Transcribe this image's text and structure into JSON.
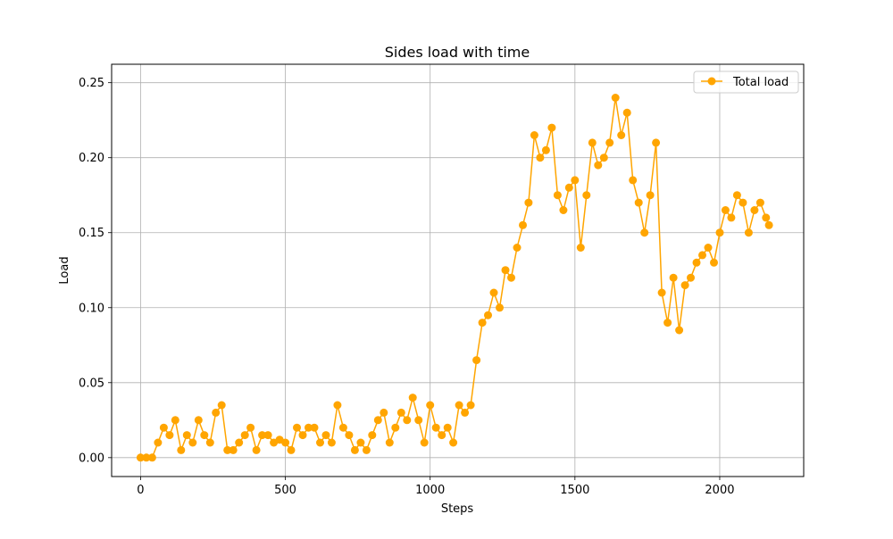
{
  "chart_data": {
    "type": "line",
    "title": "Sides load with time",
    "xlabel": "Steps",
    "ylabel": "Load",
    "xlim": [
      -100,
      2290
    ],
    "ylim": [
      -0.0126,
      0.2623
    ],
    "xticks": [
      0,
      500,
      1000,
      1500,
      2000
    ],
    "xtick_labels": [
      "0",
      "500",
      "1000",
      "1500",
      "2000"
    ],
    "yticks": [
      0.0,
      0.05,
      0.1,
      0.15,
      0.2,
      0.25
    ],
    "ytick_labels": [
      "0.00",
      "0.05",
      "0.10",
      "0.15",
      "0.20",
      "0.25"
    ],
    "grid": true,
    "legend": "top-right",
    "series": [
      {
        "name": "Total load",
        "color": "#ffa500",
        "marker": "circle",
        "x": [
          0,
          20,
          40,
          60,
          80,
          100,
          120,
          140,
          160,
          180,
          200,
          220,
          240,
          260,
          280,
          300,
          320,
          340,
          360,
          380,
          400,
          420,
          440,
          460,
          480,
          500,
          520,
          540,
          560,
          580,
          600,
          620,
          640,
          660,
          680,
          700,
          720,
          740,
          760,
          780,
          800,
          820,
          840,
          860,
          880,
          900,
          920,
          940,
          960,
          980,
          1000,
          1020,
          1040,
          1060,
          1080,
          1100,
          1120,
          1140,
          1160,
          1180,
          1200,
          1220,
          1240,
          1260,
          1280,
          1300,
          1320,
          1340,
          1360,
          1380,
          1400,
          1420,
          1440,
          1460,
          1480,
          1500,
          1520,
          1540,
          1560,
          1580,
          1600,
          1620,
          1640,
          1660,
          1680,
          1700,
          1720,
          1740,
          1760,
          1780,
          1800,
          1820,
          1840,
          1860,
          1880,
          1900,
          1920,
          1940,
          1960,
          1980,
          2000,
          2020,
          2040,
          2060,
          2080,
          2100,
          2120,
          2140,
          2160,
          2170
        ],
        "y": [
          0.0,
          0.0,
          0.0,
          0.01,
          0.02,
          0.015,
          0.025,
          0.005,
          0.015,
          0.01,
          0.025,
          0.015,
          0.01,
          0.03,
          0.035,
          0.005,
          0.005,
          0.01,
          0.015,
          0.02,
          0.005,
          0.015,
          0.015,
          0.01,
          0.012,
          0.01,
          0.005,
          0.02,
          0.015,
          0.02,
          0.02,
          0.01,
          0.015,
          0.01,
          0.035,
          0.02,
          0.015,
          0.005,
          0.01,
          0.005,
          0.015,
          0.025,
          0.03,
          0.01,
          0.02,
          0.03,
          0.025,
          0.04,
          0.025,
          0.01,
          0.035,
          0.02,
          0.015,
          0.02,
          0.01,
          0.035,
          0.03,
          0.035,
          0.065,
          0.09,
          0.095,
          0.11,
          0.1,
          0.125,
          0.12,
          0.14,
          0.155,
          0.17,
          0.215,
          0.2,
          0.205,
          0.22,
          0.175,
          0.165,
          0.18,
          0.185,
          0.14,
          0.175,
          0.21,
          0.195,
          0.2,
          0.21,
          0.24,
          0.215,
          0.23,
          0.185,
          0.17,
          0.15,
          0.175,
          0.21,
          0.11,
          0.09,
          0.12,
          0.085,
          0.115,
          0.12,
          0.13,
          0.135,
          0.14,
          0.13,
          0.15,
          0.165,
          0.16,
          0.175,
          0.17,
          0.15,
          0.165,
          0.17,
          0.16,
          0.155
        ]
      }
    ]
  }
}
